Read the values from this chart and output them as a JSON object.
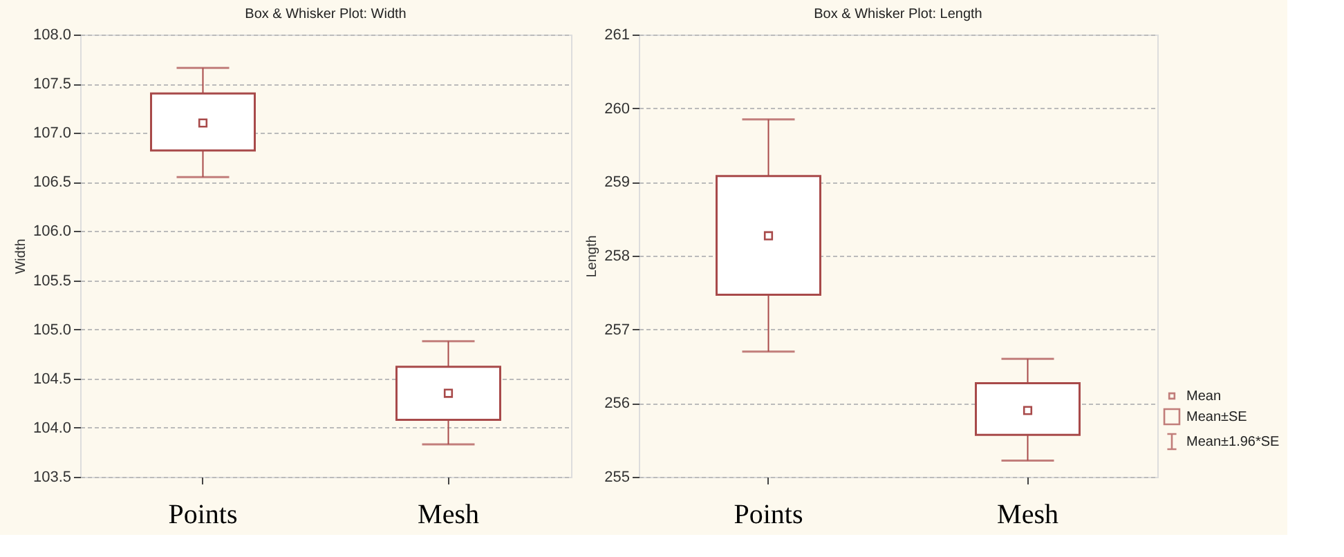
{
  "chart_data": [
    {
      "type": "box",
      "title": "Box & Whisker Plot:    Width",
      "ylabel": "Width",
      "categories": [
        "Points",
        "Mesh"
      ],
      "color": "#a84a4a",
      "boxes": [
        {
          "low": 106.55,
          "q1": 106.82,
          "median": 107.1,
          "q3": 107.4,
          "high": 107.66
        },
        {
          "low": 103.83,
          "q1": 104.08,
          "median": 104.35,
          "q3": 104.62,
          "high": 104.88
        }
      ],
      "ylim": [
        103.5,
        108.0
      ],
      "yticks": [
        {
          "value": 103.5,
          "label": "103.5"
        },
        {
          "value": 104,
          "label": "104.0"
        },
        {
          "value": 104.5,
          "label": "104.5"
        },
        {
          "value": 105,
          "label": "105.0"
        },
        {
          "value": 105.5,
          "label": "105.5"
        },
        {
          "value": 106,
          "label": "106.0"
        },
        {
          "value": 106.5,
          "label": "106.5"
        },
        {
          "value": 107,
          "label": "107.0"
        },
        {
          "value": 107.5,
          "label": "107.5"
        },
        {
          "value": 108,
          "label": "108.0"
        }
      ],
      "grid": "y"
    },
    {
      "type": "box",
      "title": "Box & Whisker Plot:    Length",
      "ylabel": "Length",
      "categories": [
        "Points",
        "Mesh"
      ],
      "color": "#a84a4a",
      "boxes": [
        {
          "low": 256.7,
          "q1": 257.47,
          "median": 258.27,
          "q3": 259.08,
          "high": 259.85
        },
        {
          "low": 255.22,
          "q1": 255.57,
          "median": 255.9,
          "q3": 256.27,
          "high": 256.6
        }
      ],
      "ylim": [
        255,
        261
      ],
      "yticks": [
        255,
        256,
        257,
        258,
        259,
        260,
        261
      ],
      "grid": "y",
      "annotations": [
        "Mean",
        "Mean±SE",
        "Mean±1.96*SE"
      ]
    }
  ]
}
